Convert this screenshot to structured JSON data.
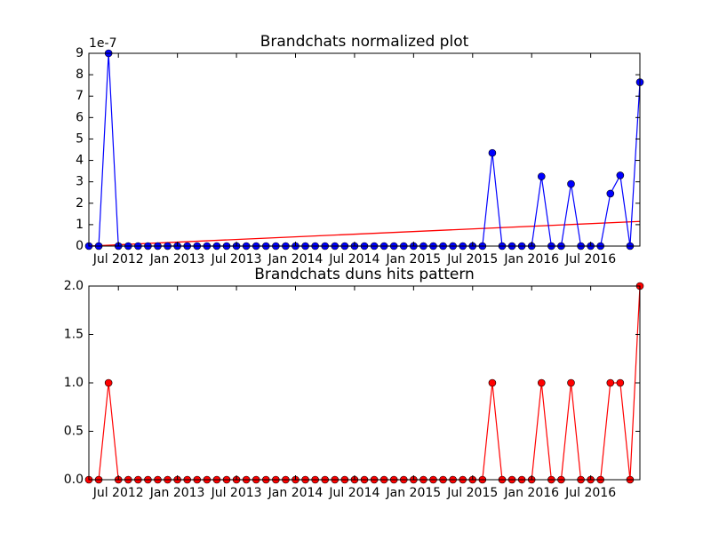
{
  "chart_data": [
    {
      "type": "line",
      "title": "Brandchats normalized plot",
      "y_offset_label": "1e-7",
      "x": [
        "2012-04",
        "2012-05",
        "2012-06",
        "2012-07",
        "2012-08",
        "2012-09",
        "2012-10",
        "2012-11",
        "2012-12",
        "2013-01",
        "2013-02",
        "2013-03",
        "2013-04",
        "2013-05",
        "2013-06",
        "2013-07",
        "2013-08",
        "2013-09",
        "2013-10",
        "2013-11",
        "2013-12",
        "2014-01",
        "2014-02",
        "2014-03",
        "2014-04",
        "2014-05",
        "2014-06",
        "2014-07",
        "2014-08",
        "2014-09",
        "2014-10",
        "2014-11",
        "2014-12",
        "2015-01",
        "2015-02",
        "2015-03",
        "2015-04",
        "2015-05",
        "2015-06",
        "2015-07",
        "2015-08",
        "2015-09",
        "2015-10",
        "2015-11",
        "2015-12",
        "2016-01",
        "2016-02",
        "2016-03",
        "2016-04",
        "2016-05",
        "2016-06",
        "2016-07",
        "2016-08",
        "2016-09",
        "2016-10",
        "2016-11",
        "2016-12"
      ],
      "series": [
        {
          "color": "#0000ff",
          "marker_color": "#0000ff",
          "values": [
            0,
            0,
            9.0,
            0,
            0,
            0,
            0,
            0,
            0,
            0,
            0,
            0,
            0,
            0,
            0,
            0,
            0,
            0,
            0,
            0,
            0,
            0,
            0,
            0,
            0,
            0,
            0,
            0,
            0,
            0,
            0,
            0,
            0,
            0,
            0,
            0,
            0,
            0,
            0,
            0,
            0,
            4.35,
            0,
            0,
            0,
            0,
            3.25,
            0,
            0,
            2.9,
            0,
            0,
            0,
            2.45,
            3.3,
            0,
            7.65
          ]
        }
      ],
      "trend": {
        "color": "#ff0000",
        "values": [
          0.0,
          1.15
        ]
      },
      "xlim": [
        "2012-04",
        "2016-12"
      ],
      "xticks": [
        {
          "value": "2012-07",
          "label": "Jul 2012"
        },
        {
          "value": "2013-01",
          "label": "Jan 2013"
        },
        {
          "value": "2013-07",
          "label": "Jul 2013"
        },
        {
          "value": "2014-01",
          "label": "Jan 2014"
        },
        {
          "value": "2014-07",
          "label": "Jul 2014"
        },
        {
          "value": "2015-01",
          "label": "Jan 2015"
        },
        {
          "value": "2015-07",
          "label": "Jul 2015"
        },
        {
          "value": "2016-01",
          "label": "Jan 2016"
        },
        {
          "value": "2016-07",
          "label": "Jul 2016"
        }
      ],
      "ylim": [
        0,
        9
      ],
      "yticks": [
        0,
        1,
        2,
        3,
        4,
        5,
        6,
        7,
        8,
        9
      ]
    },
    {
      "type": "line",
      "title": "Brandchats duns hits pattern",
      "x": [
        "2012-04",
        "2012-05",
        "2012-06",
        "2012-07",
        "2012-08",
        "2012-09",
        "2012-10",
        "2012-11",
        "2012-12",
        "2013-01",
        "2013-02",
        "2013-03",
        "2013-04",
        "2013-05",
        "2013-06",
        "2013-07",
        "2013-08",
        "2013-09",
        "2013-10",
        "2013-11",
        "2013-12",
        "2014-01",
        "2014-02",
        "2014-03",
        "2014-04",
        "2014-05",
        "2014-06",
        "2014-07",
        "2014-08",
        "2014-09",
        "2014-10",
        "2014-11",
        "2014-12",
        "2015-01",
        "2015-02",
        "2015-03",
        "2015-04",
        "2015-05",
        "2015-06",
        "2015-07",
        "2015-08",
        "2015-09",
        "2015-10",
        "2015-11",
        "2015-12",
        "2016-01",
        "2016-02",
        "2016-03",
        "2016-04",
        "2016-05",
        "2016-06",
        "2016-07",
        "2016-08",
        "2016-09",
        "2016-10",
        "2016-11",
        "2016-12"
      ],
      "series": [
        {
          "color": "#ff0000",
          "marker_color": "#ff0000",
          "values": [
            0,
            0,
            1,
            0,
            0,
            0,
            0,
            0,
            0,
            0,
            0,
            0,
            0,
            0,
            0,
            0,
            0,
            0,
            0,
            0,
            0,
            0,
            0,
            0,
            0,
            0,
            0,
            0,
            0,
            0,
            0,
            0,
            0,
            0,
            0,
            0,
            0,
            0,
            0,
            0,
            0,
            1,
            0,
            0,
            0,
            0,
            1,
            0,
            0,
            1,
            0,
            0,
            0,
            1,
            1,
            0,
            2
          ]
        }
      ],
      "xlim": [
        "2012-04",
        "2016-12"
      ],
      "xticks": [
        {
          "value": "2012-07",
          "label": "Jul 2012"
        },
        {
          "value": "2013-01",
          "label": "Jan 2013"
        },
        {
          "value": "2013-07",
          "label": "Jul 2013"
        },
        {
          "value": "2014-01",
          "label": "Jan 2014"
        },
        {
          "value": "2014-07",
          "label": "Jul 2014"
        },
        {
          "value": "2015-01",
          "label": "Jan 2015"
        },
        {
          "value": "2015-07",
          "label": "Jul 2015"
        },
        {
          "value": "2016-01",
          "label": "Jan 2016"
        },
        {
          "value": "2016-07",
          "label": "Jul 2016"
        }
      ],
      "ylim": [
        0,
        2
      ],
      "yticks": [
        {
          "value": 0,
          "label": "0.0"
        },
        {
          "value": 0.5,
          "label": "0.5"
        },
        {
          "value": 1,
          "label": "1.0"
        },
        {
          "value": 1.5,
          "label": "1.5"
        },
        {
          "value": 2,
          "label": "2.0"
        }
      ]
    }
  ]
}
